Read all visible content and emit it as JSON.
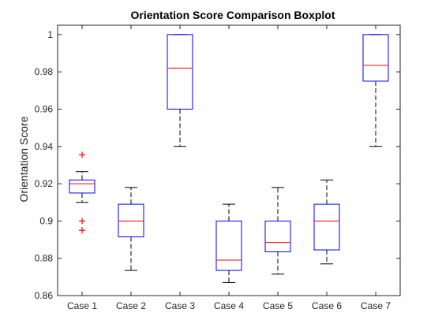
{
  "chart_data": {
    "type": "boxplot",
    "title": "Orientation Score Comparison Boxplot",
    "xlabel": "",
    "ylabel": "Orientation Score",
    "ylim": [
      0.86,
      1.005
    ],
    "yticks": [
      0.86,
      0.88,
      0.9,
      0.92,
      0.94,
      0.96,
      0.98,
      1
    ],
    "ytick_labels": [
      "0.86",
      "0.88",
      "0.9",
      "0.92",
      "0.94",
      "0.96",
      "0.98",
      "1"
    ],
    "categories": [
      "Case 1",
      "Case 2",
      "Case 3",
      "Case 4",
      "Case 5",
      "Case 6",
      "Case 7"
    ],
    "boxes": [
      {
        "category": "Case 1",
        "whisker_low": 0.91,
        "q1": 0.915,
        "median": 0.92,
        "q3": 0.922,
        "whisker_high": 0.9265,
        "outliers": [
          0.9355,
          0.9,
          0.895
        ]
      },
      {
        "category": "Case 2",
        "whisker_low": 0.8735,
        "q1": 0.8915,
        "median": 0.9,
        "q3": 0.909,
        "whisker_high": 0.918,
        "outliers": []
      },
      {
        "category": "Case 3",
        "whisker_low": 0.94,
        "q1": 0.96,
        "median": 0.982,
        "q3": 1.0,
        "whisker_high": 1.0,
        "outliers": []
      },
      {
        "category": "Case 4",
        "whisker_low": 0.867,
        "q1": 0.8735,
        "median": 0.879,
        "q3": 0.9,
        "whisker_high": 0.909,
        "outliers": []
      },
      {
        "category": "Case 5",
        "whisker_low": 0.8715,
        "q1": 0.8835,
        "median": 0.8885,
        "q3": 0.9,
        "whisker_high": 0.918,
        "outliers": []
      },
      {
        "category": "Case 6",
        "whisker_low": 0.877,
        "q1": 0.8845,
        "median": 0.9,
        "q3": 0.909,
        "whisker_high": 0.922,
        "outliers": []
      },
      {
        "category": "Case 7",
        "whisker_low": 0.94,
        "q1": 0.975,
        "median": 0.9835,
        "q3": 1.0,
        "whisker_high": 1.0,
        "outliers": []
      }
    ],
    "grid": false,
    "legend": "none",
    "colors": {
      "box": "#0000ff",
      "median": "#ff0000",
      "whisker": "#000000",
      "outlier": "#ff0000",
      "axes": "#262626",
      "text": "#262626",
      "background": "#ffffff"
    }
  }
}
